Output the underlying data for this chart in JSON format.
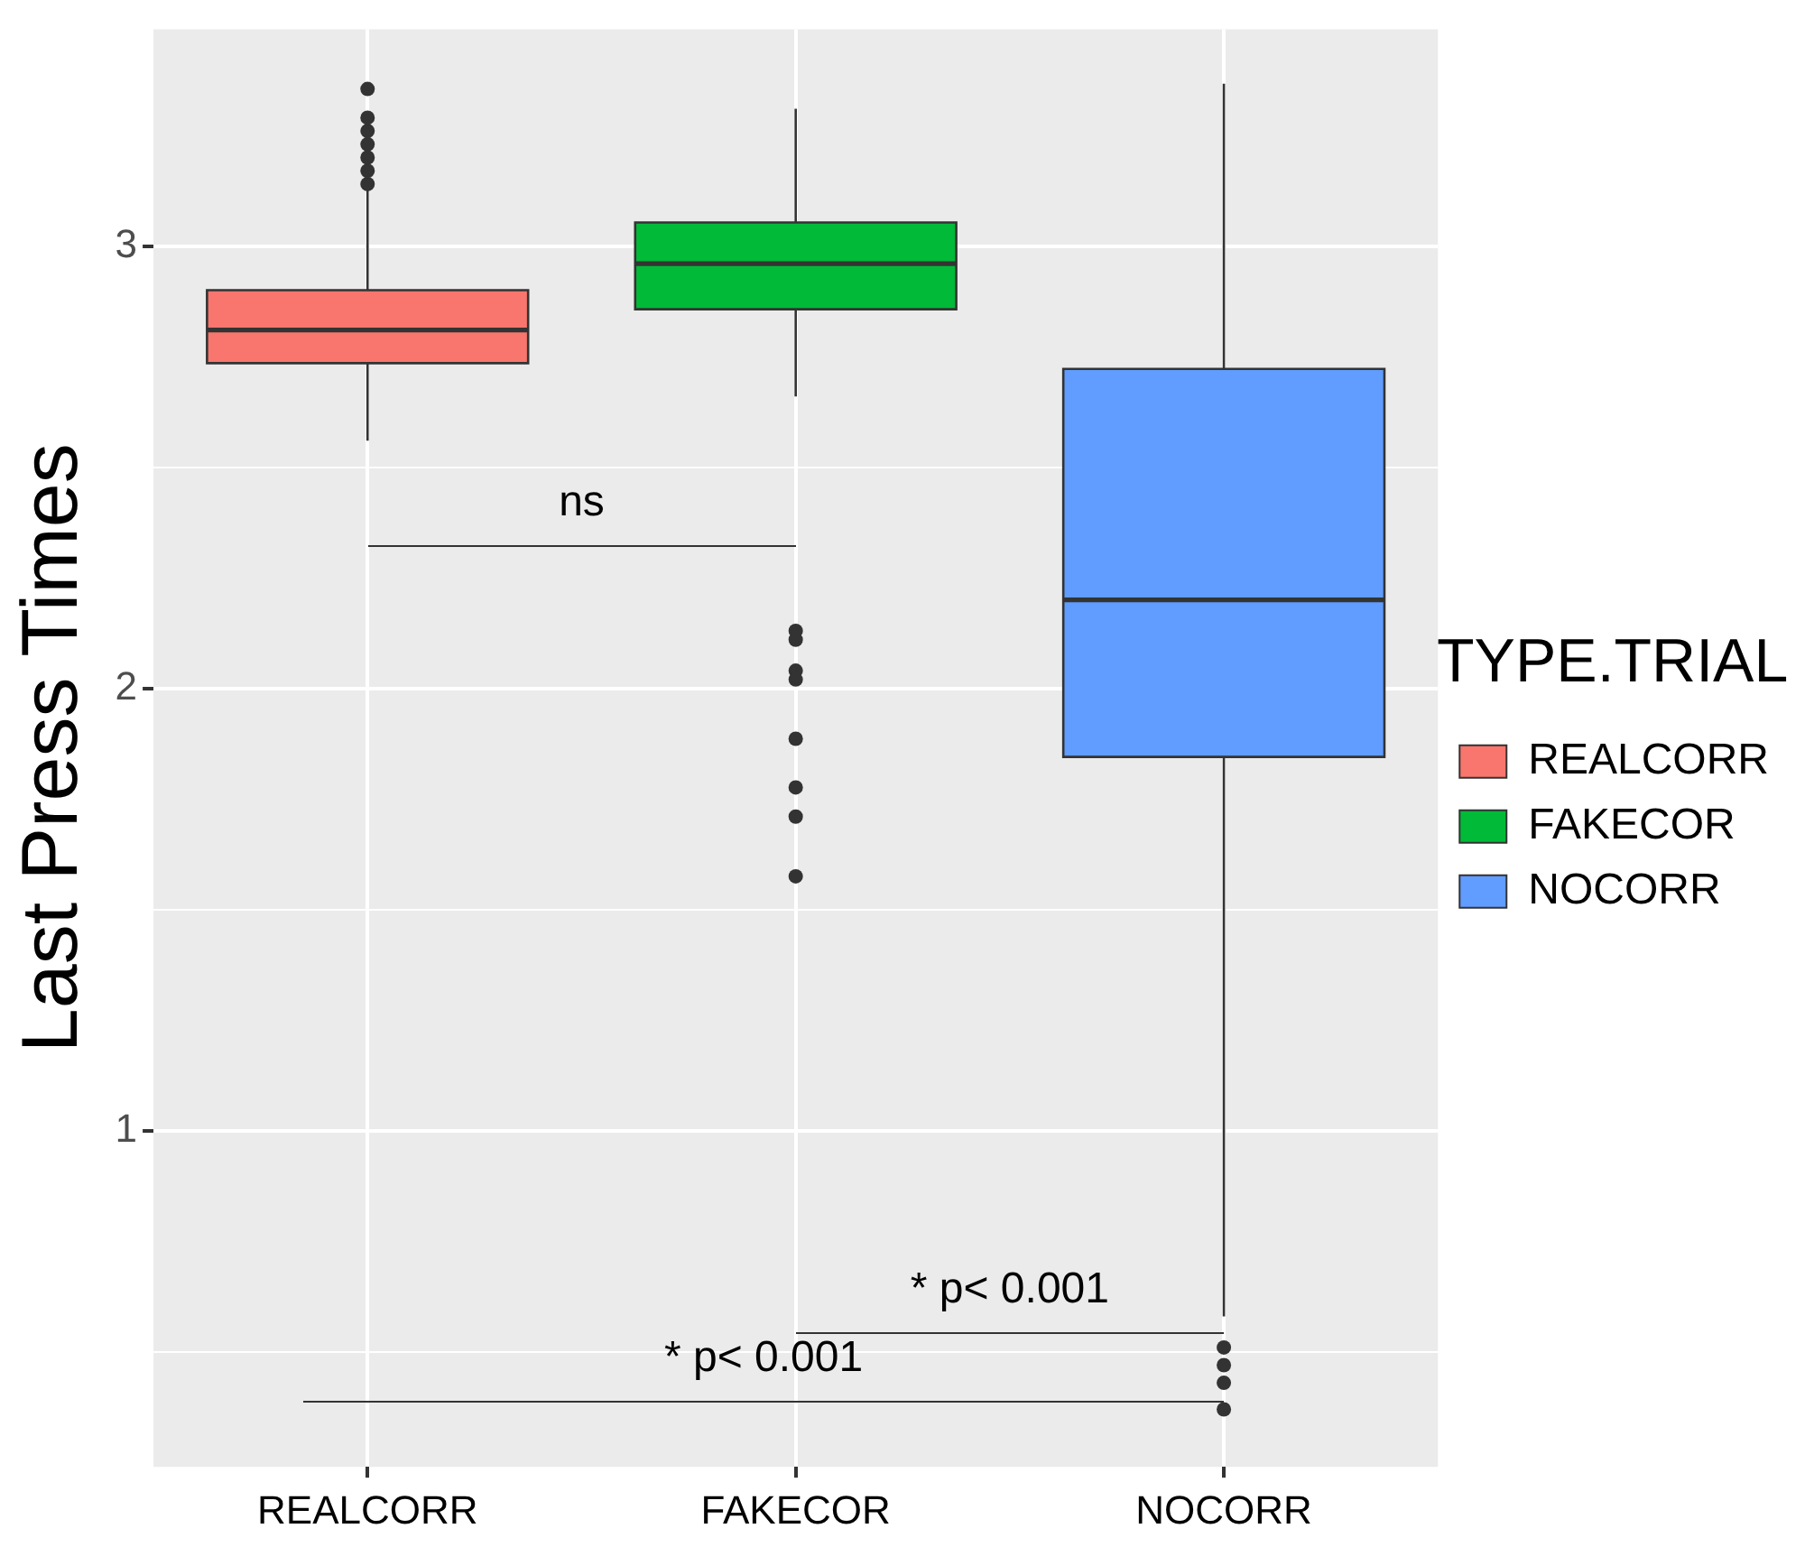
{
  "chart_data": {
    "type": "box",
    "categories": [
      "REALCORR",
      "FAKECOR",
      "NOCORR"
    ],
    "series": [
      {
        "name": "REALCORR",
        "color": "#f8766d",
        "boxes": [
          {
            "low": 2.56,
            "q1": 2.735,
            "median": 2.81,
            "q3": 2.9,
            "high": 3.13,
            "outliers": [
              3.14,
              3.17,
              3.2,
              3.23,
              3.26,
              3.29,
              3.355
            ]
          },
          null,
          null
        ]
      },
      {
        "name": "FAKECOR",
        "color": "#00ba38",
        "boxes": [
          null,
          {
            "low": 2.66,
            "q1": 2.857,
            "median": 2.96,
            "q3": 3.053,
            "high": 3.31,
            "outliers": [
              2.13,
              2.11,
              2.04,
              2.02,
              1.886,
              1.776,
              1.71,
              1.575
            ]
          },
          null
        ]
      },
      {
        "name": "NOCORR",
        "color": "#619cff",
        "boxes": [
          null,
          null,
          {
            "low": 0.58,
            "q1": 1.845,
            "median": 2.2,
            "q3": 2.722,
            "high": 3.367,
            "outliers": [
              0.51,
              0.47,
              0.43,
              0.37
            ]
          }
        ]
      }
    ],
    "ylabel": "Last Press Times",
    "legend_title": "TYPE.TRIAL",
    "legend": "right",
    "grid": true,
    "ylim": [
      0.24,
      3.49
    ],
    "yticks": [
      {
        "value": 0.5,
        "label": null
      },
      1,
      {
        "value": 1.5,
        "label": null
      },
      2,
      {
        "value": 2.5,
        "label": null
      },
      3
    ],
    "annotations": [
      "ns",
      "* p< 0.001",
      "* p< 0.001"
    ]
  }
}
